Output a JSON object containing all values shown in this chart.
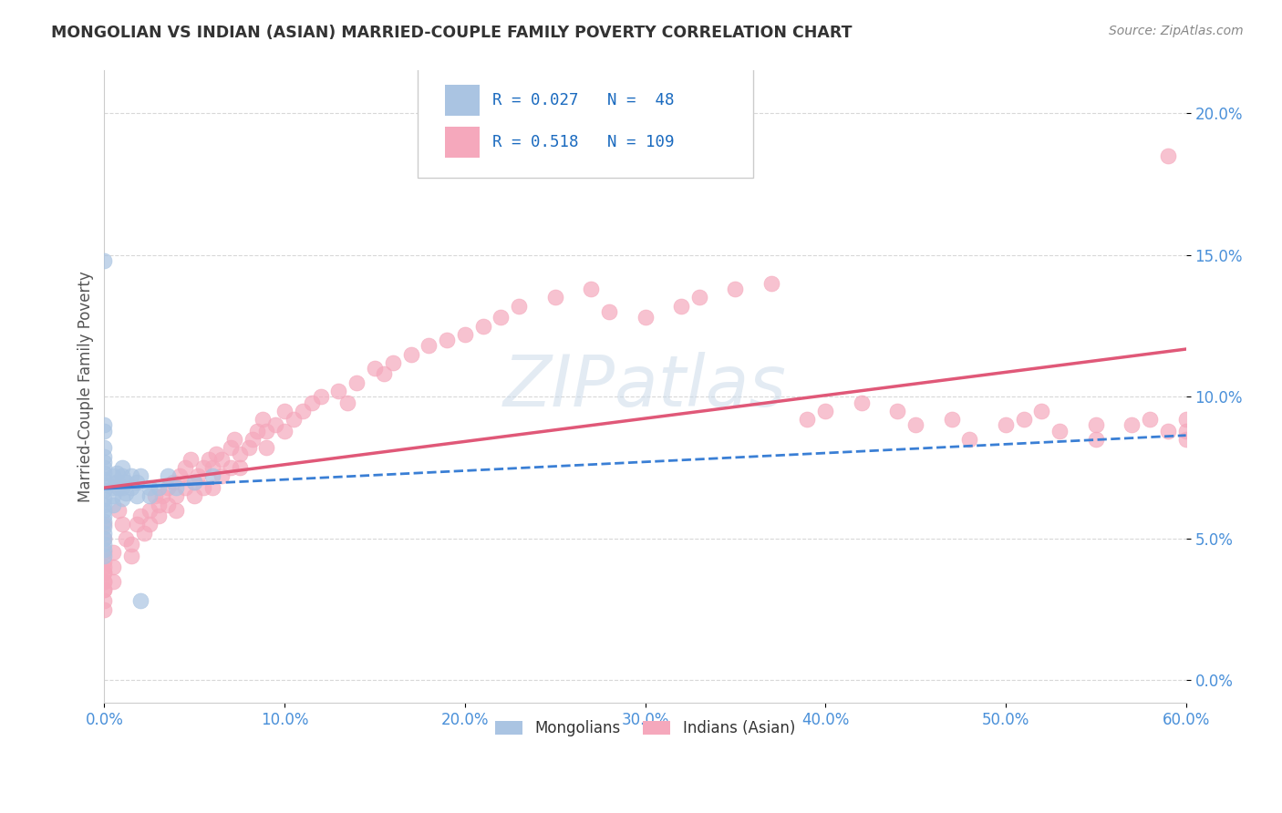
{
  "title": "MONGOLIAN VS INDIAN (ASIAN) MARRIED-COUPLE FAMILY POVERTY CORRELATION CHART",
  "source": "Source: ZipAtlas.com",
  "ylabel": "Married-Couple Family Poverty",
  "xlim": [
    0.0,
    0.6
  ],
  "ylim": [
    -0.008,
    0.215
  ],
  "xticks": [
    0.0,
    0.1,
    0.2,
    0.3,
    0.4,
    0.5,
    0.6
  ],
  "yticks": [
    0.0,
    0.05,
    0.1,
    0.15,
    0.2
  ],
  "mongolian_color": "#aac4e2",
  "indian_color": "#f5a8bc",
  "mongolian_edge_color": "#7aaad0",
  "indian_edge_color": "#e87090",
  "mongolian_line_color": "#3a7fd5",
  "indian_line_color": "#e05878",
  "R_mongolian": 0.027,
  "N_mongolian": 48,
  "R_indian": 0.518,
  "N_indian": 109,
  "background_color": "#ffffff",
  "grid_color": "#d8d8d8",
  "title_color": "#333333",
  "source_color": "#888888",
  "axis_label_color": "#555555",
  "tick_color": "#4a90d9",
  "mongolian_x": [
    0.0,
    0.0,
    0.0,
    0.0,
    0.0,
    0.0,
    0.0,
    0.0,
    0.0,
    0.0,
    0.0,
    0.0,
    0.0,
    0.0,
    0.0,
    0.0,
    0.0,
    0.0,
    0.0,
    0.0,
    0.0,
    0.0,
    0.005,
    0.005,
    0.005,
    0.005,
    0.007,
    0.007,
    0.008,
    0.01,
    0.01,
    0.01,
    0.01,
    0.012,
    0.012,
    0.015,
    0.015,
    0.018,
    0.018,
    0.02,
    0.025,
    0.025,
    0.03,
    0.035,
    0.04,
    0.05,
    0.06,
    0.02
  ],
  "mongolian_y": [
    0.148,
    0.09,
    0.088,
    0.082,
    0.079,
    0.077,
    0.075,
    0.073,
    0.071,
    0.069,
    0.067,
    0.064,
    0.062,
    0.06,
    0.058,
    0.056,
    0.054,
    0.052,
    0.05,
    0.048,
    0.046,
    0.044,
    0.072,
    0.068,
    0.065,
    0.062,
    0.073,
    0.07,
    0.068,
    0.075,
    0.072,
    0.068,
    0.064,
    0.07,
    0.066,
    0.072,
    0.068,
    0.07,
    0.065,
    0.072,
    0.068,
    0.065,
    0.068,
    0.072,
    0.068,
    0.07,
    0.072,
    0.028
  ],
  "indian_x": [
    0.005,
    0.005,
    0.005,
    0.008,
    0.01,
    0.012,
    0.015,
    0.015,
    0.018,
    0.02,
    0.022,
    0.025,
    0.025,
    0.028,
    0.03,
    0.03,
    0.032,
    0.035,
    0.035,
    0.038,
    0.04,
    0.04,
    0.042,
    0.045,
    0.045,
    0.048,
    0.05,
    0.05,
    0.052,
    0.055,
    0.055,
    0.058,
    0.06,
    0.06,
    0.062,
    0.065,
    0.065,
    0.07,
    0.07,
    0.072,
    0.075,
    0.075,
    0.08,
    0.082,
    0.085,
    0.088,
    0.09,
    0.09,
    0.095,
    0.1,
    0.1,
    0.105,
    0.11,
    0.115,
    0.12,
    0.13,
    0.135,
    0.14,
    0.15,
    0.155,
    0.16,
    0.17,
    0.18,
    0.19,
    0.2,
    0.21,
    0.22,
    0.23,
    0.25,
    0.27,
    0.28,
    0.3,
    0.32,
    0.33,
    0.35,
    0.37,
    0.39,
    0.4,
    0.42,
    0.44,
    0.45,
    0.47,
    0.48,
    0.5,
    0.51,
    0.52,
    0.53,
    0.55,
    0.55,
    0.57,
    0.58,
    0.59,
    0.59,
    0.6,
    0.6,
    0.6,
    0.0,
    0.0,
    0.0,
    0.0,
    0.0,
    0.0,
    0.0,
    0.0,
    0.0,
    0.0,
    0.0,
    0.0,
    0.0
  ],
  "indian_y": [
    0.045,
    0.04,
    0.035,
    0.06,
    0.055,
    0.05,
    0.048,
    0.044,
    0.055,
    0.058,
    0.052,
    0.06,
    0.055,
    0.065,
    0.062,
    0.058,
    0.065,
    0.068,
    0.062,
    0.07,
    0.065,
    0.06,
    0.072,
    0.075,
    0.068,
    0.078,
    0.07,
    0.065,
    0.072,
    0.075,
    0.068,
    0.078,
    0.075,
    0.068,
    0.08,
    0.078,
    0.072,
    0.082,
    0.075,
    0.085,
    0.08,
    0.075,
    0.082,
    0.085,
    0.088,
    0.092,
    0.088,
    0.082,
    0.09,
    0.095,
    0.088,
    0.092,
    0.095,
    0.098,
    0.1,
    0.102,
    0.098,
    0.105,
    0.11,
    0.108,
    0.112,
    0.115,
    0.118,
    0.12,
    0.122,
    0.125,
    0.128,
    0.132,
    0.135,
    0.138,
    0.13,
    0.128,
    0.132,
    0.135,
    0.138,
    0.14,
    0.092,
    0.095,
    0.098,
    0.095,
    0.09,
    0.092,
    0.085,
    0.09,
    0.092,
    0.095,
    0.088,
    0.09,
    0.085,
    0.09,
    0.092,
    0.185,
    0.088,
    0.092,
    0.088,
    0.085,
    0.055,
    0.05,
    0.045,
    0.042,
    0.038,
    0.035,
    0.032,
    0.028,
    0.025,
    0.04,
    0.038,
    0.035,
    0.032
  ]
}
